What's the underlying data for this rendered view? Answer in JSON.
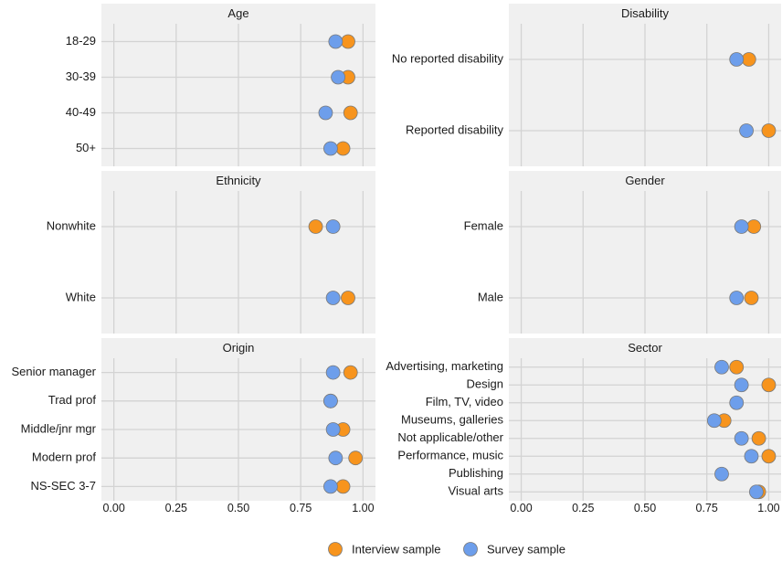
{
  "chart_data": {
    "type": "scatter",
    "xlim": [
      -0.05,
      1.05
    ],
    "x_ticks": [
      0,
      0.25,
      0.5,
      0.75,
      1
    ],
    "x_tick_labels": [
      "0.00",
      "0.25",
      "0.50",
      "0.75",
      "1.00"
    ],
    "grid": true,
    "legend_position": "bottom",
    "series": [
      {
        "name": "Interview sample",
        "color": "#f7941d"
      },
      {
        "name": "Survey sample",
        "color": "#6d9eeb"
      }
    ],
    "panels": [
      {
        "title": "Age",
        "categories": [
          "18-29",
          "30-39",
          "40-49",
          "50+"
        ],
        "interview": [
          0.94,
          0.94,
          0.95,
          0.92
        ],
        "survey": [
          0.89,
          0.9,
          0.85,
          0.87
        ]
      },
      {
        "title": "Disability",
        "categories": [
          "No reported disability",
          "Reported disability"
        ],
        "interview": [
          0.92,
          1.0
        ],
        "survey": [
          0.87,
          0.91
        ]
      },
      {
        "title": "Ethnicity",
        "categories": [
          "Nonwhite",
          "White"
        ],
        "interview": [
          0.81,
          0.94
        ],
        "survey": [
          0.88,
          0.88
        ]
      },
      {
        "title": "Gender",
        "categories": [
          "Female",
          "Male"
        ],
        "interview": [
          0.94,
          0.93
        ],
        "survey": [
          0.89,
          0.87
        ]
      },
      {
        "title": "Origin",
        "categories": [
          "Senior manager",
          "Trad prof",
          "Middle/jnr mgr",
          "Modern prof",
          "NS-SEC 3-7"
        ],
        "interview": [
          0.95,
          0.87,
          0.92,
          0.97,
          0.92
        ],
        "survey": [
          0.88,
          0.87,
          0.88,
          0.89,
          0.87
        ]
      },
      {
        "title": "Sector",
        "categories": [
          "Advertising, marketing",
          "Design",
          "Film, TV, video",
          "Museums, galleries",
          "Not applicable/other",
          "Performance, music",
          "Publishing",
          "Visual arts"
        ],
        "interview": [
          0.87,
          1.0,
          null,
          0.82,
          0.96,
          1.0,
          null,
          0.96
        ],
        "survey": [
          0.81,
          0.89,
          0.87,
          0.78,
          0.89,
          0.93,
          0.81,
          0.95
        ]
      }
    ]
  }
}
